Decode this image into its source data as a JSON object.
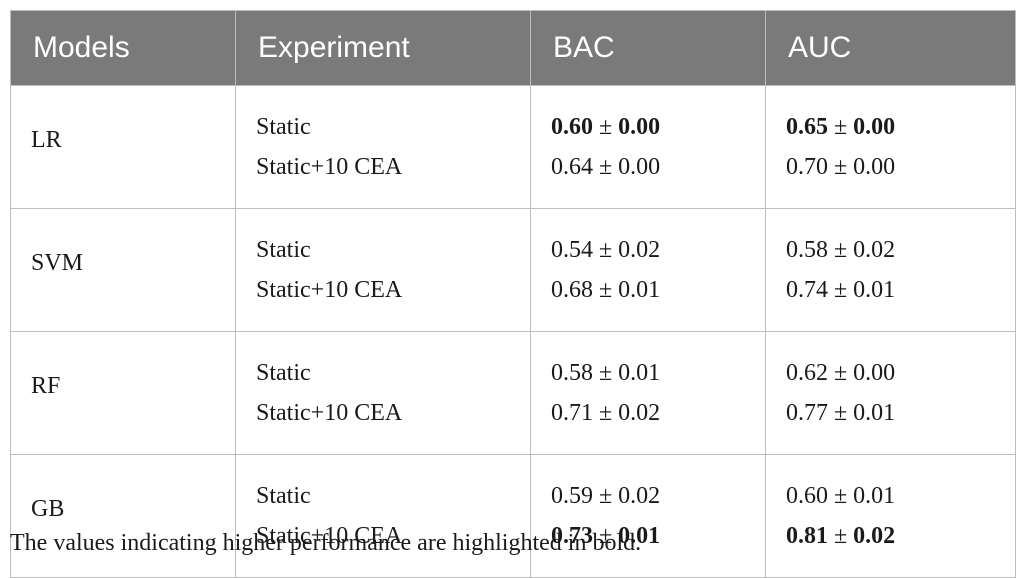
{
  "table": {
    "headers": [
      "Models",
      "Experiment",
      "BAC",
      "AUC"
    ],
    "header_background": "#7a7a7a",
    "rows": [
      {
        "model": "LR",
        "experiments": [
          "Static",
          "Static+10 CEA"
        ],
        "bac": [
          {
            "mean": "0.60",
            "pm": "±",
            "sd": "0.00",
            "bold": true
          },
          {
            "mean": "0.64",
            "pm": "±",
            "sd": "0.00",
            "bold": false
          }
        ],
        "auc": [
          {
            "mean": "0.65",
            "pm": "±",
            "sd": "0.00",
            "bold": true
          },
          {
            "mean": "0.70",
            "pm": "±",
            "sd": "0.00",
            "bold": false
          }
        ]
      },
      {
        "model": "SVM",
        "experiments": [
          "Static",
          "Static+10 CEA"
        ],
        "bac": [
          {
            "mean": "0.54",
            "pm": "±",
            "sd": "0.02",
            "bold": false
          },
          {
            "mean": "0.68",
            "pm": "±",
            "sd": "0.01",
            "bold": false
          }
        ],
        "auc": [
          {
            "mean": "0.58",
            "pm": "±",
            "sd": "0.02",
            "bold": false
          },
          {
            "mean": "0.74",
            "pm": "±",
            "sd": "0.01",
            "bold": false
          }
        ]
      },
      {
        "model": "RF",
        "experiments": [
          "Static",
          "Static+10 CEA"
        ],
        "bac": [
          {
            "mean": "0.58",
            "pm": "±",
            "sd": "0.01",
            "bold": false
          },
          {
            "mean": "0.71",
            "pm": "±",
            "sd": "0.02",
            "bold": false
          }
        ],
        "auc": [
          {
            "mean": "0.62",
            "pm": "±",
            "sd": "0.00",
            "bold": false
          },
          {
            "mean": "0.77",
            "pm": "±",
            "sd": "0.01",
            "bold": false
          }
        ]
      },
      {
        "model": "GB",
        "experiments": [
          "Static",
          "Static+10 CEA"
        ],
        "bac": [
          {
            "mean": "0.59",
            "pm": "±",
            "sd": "0.02",
            "bold": false
          },
          {
            "mean": "0.73",
            "pm": "±",
            "sd": "0.01",
            "bold": true
          }
        ],
        "auc": [
          {
            "mean": "0.60",
            "pm": "±",
            "sd": "0.01",
            "bold": false
          },
          {
            "mean": "0.81",
            "pm": "±",
            "sd": "0.02",
            "bold": true
          }
        ]
      }
    ]
  },
  "footnote": "The values indicating higher performance are highlighted in bold."
}
